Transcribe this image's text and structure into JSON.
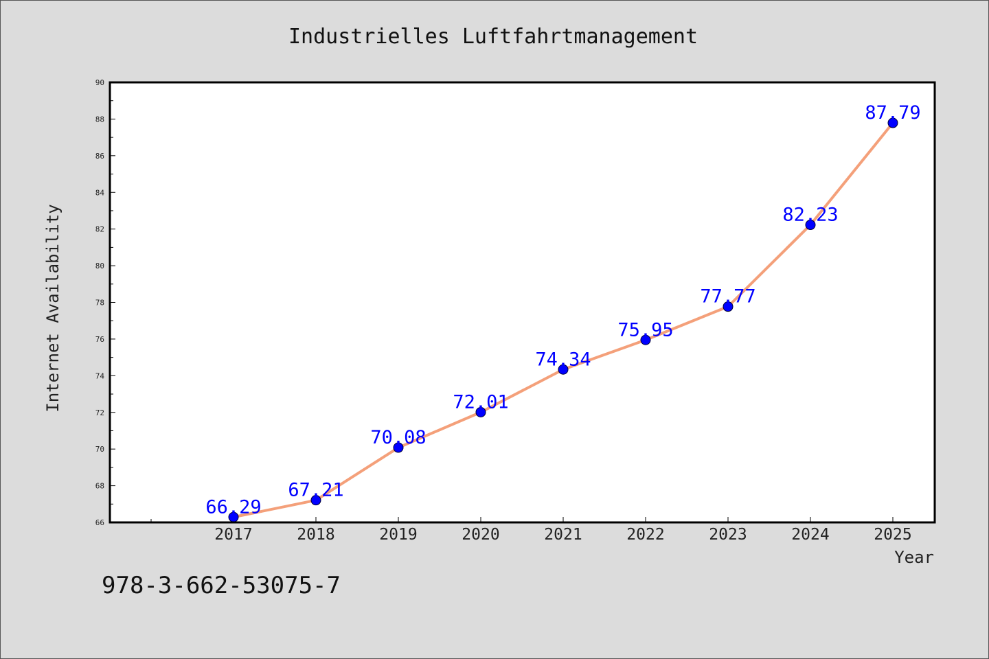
{
  "chart_data": {
    "type": "line",
    "title": "Industrielles Luftfahrtmanagement",
    "xlabel": "Year",
    "ylabel": "Internet Availability",
    "categories": [
      "2017",
      "2018",
      "2019",
      "2020",
      "2021",
      "2022",
      "2023",
      "2024",
      "2025"
    ],
    "series": [
      {
        "values": [
          66.29,
          67.21,
          70.08,
          72.01,
          74.34,
          75.95,
          77.77,
          82.23,
          87.79
        ]
      }
    ],
    "data_labels": [
      "66.29",
      "67.21",
      "70.08",
      "72.01",
      "74.34",
      "75.95",
      "77.77",
      "82.23",
      "87.79"
    ],
    "ylim": [
      66,
      90
    ],
    "yticks": [
      66,
      68,
      70,
      72,
      74,
      76,
      78,
      80,
      82,
      84,
      86,
      88,
      90
    ],
    "grid": false,
    "legend": "none",
    "colors": {
      "line": "#f4a07a",
      "marker": "#0000ff",
      "label": "#0000ff",
      "background": "#dcdcdc",
      "plot_area": "#ffffff"
    }
  },
  "footer": {
    "isbn": "978-3-662-53075-7"
  }
}
